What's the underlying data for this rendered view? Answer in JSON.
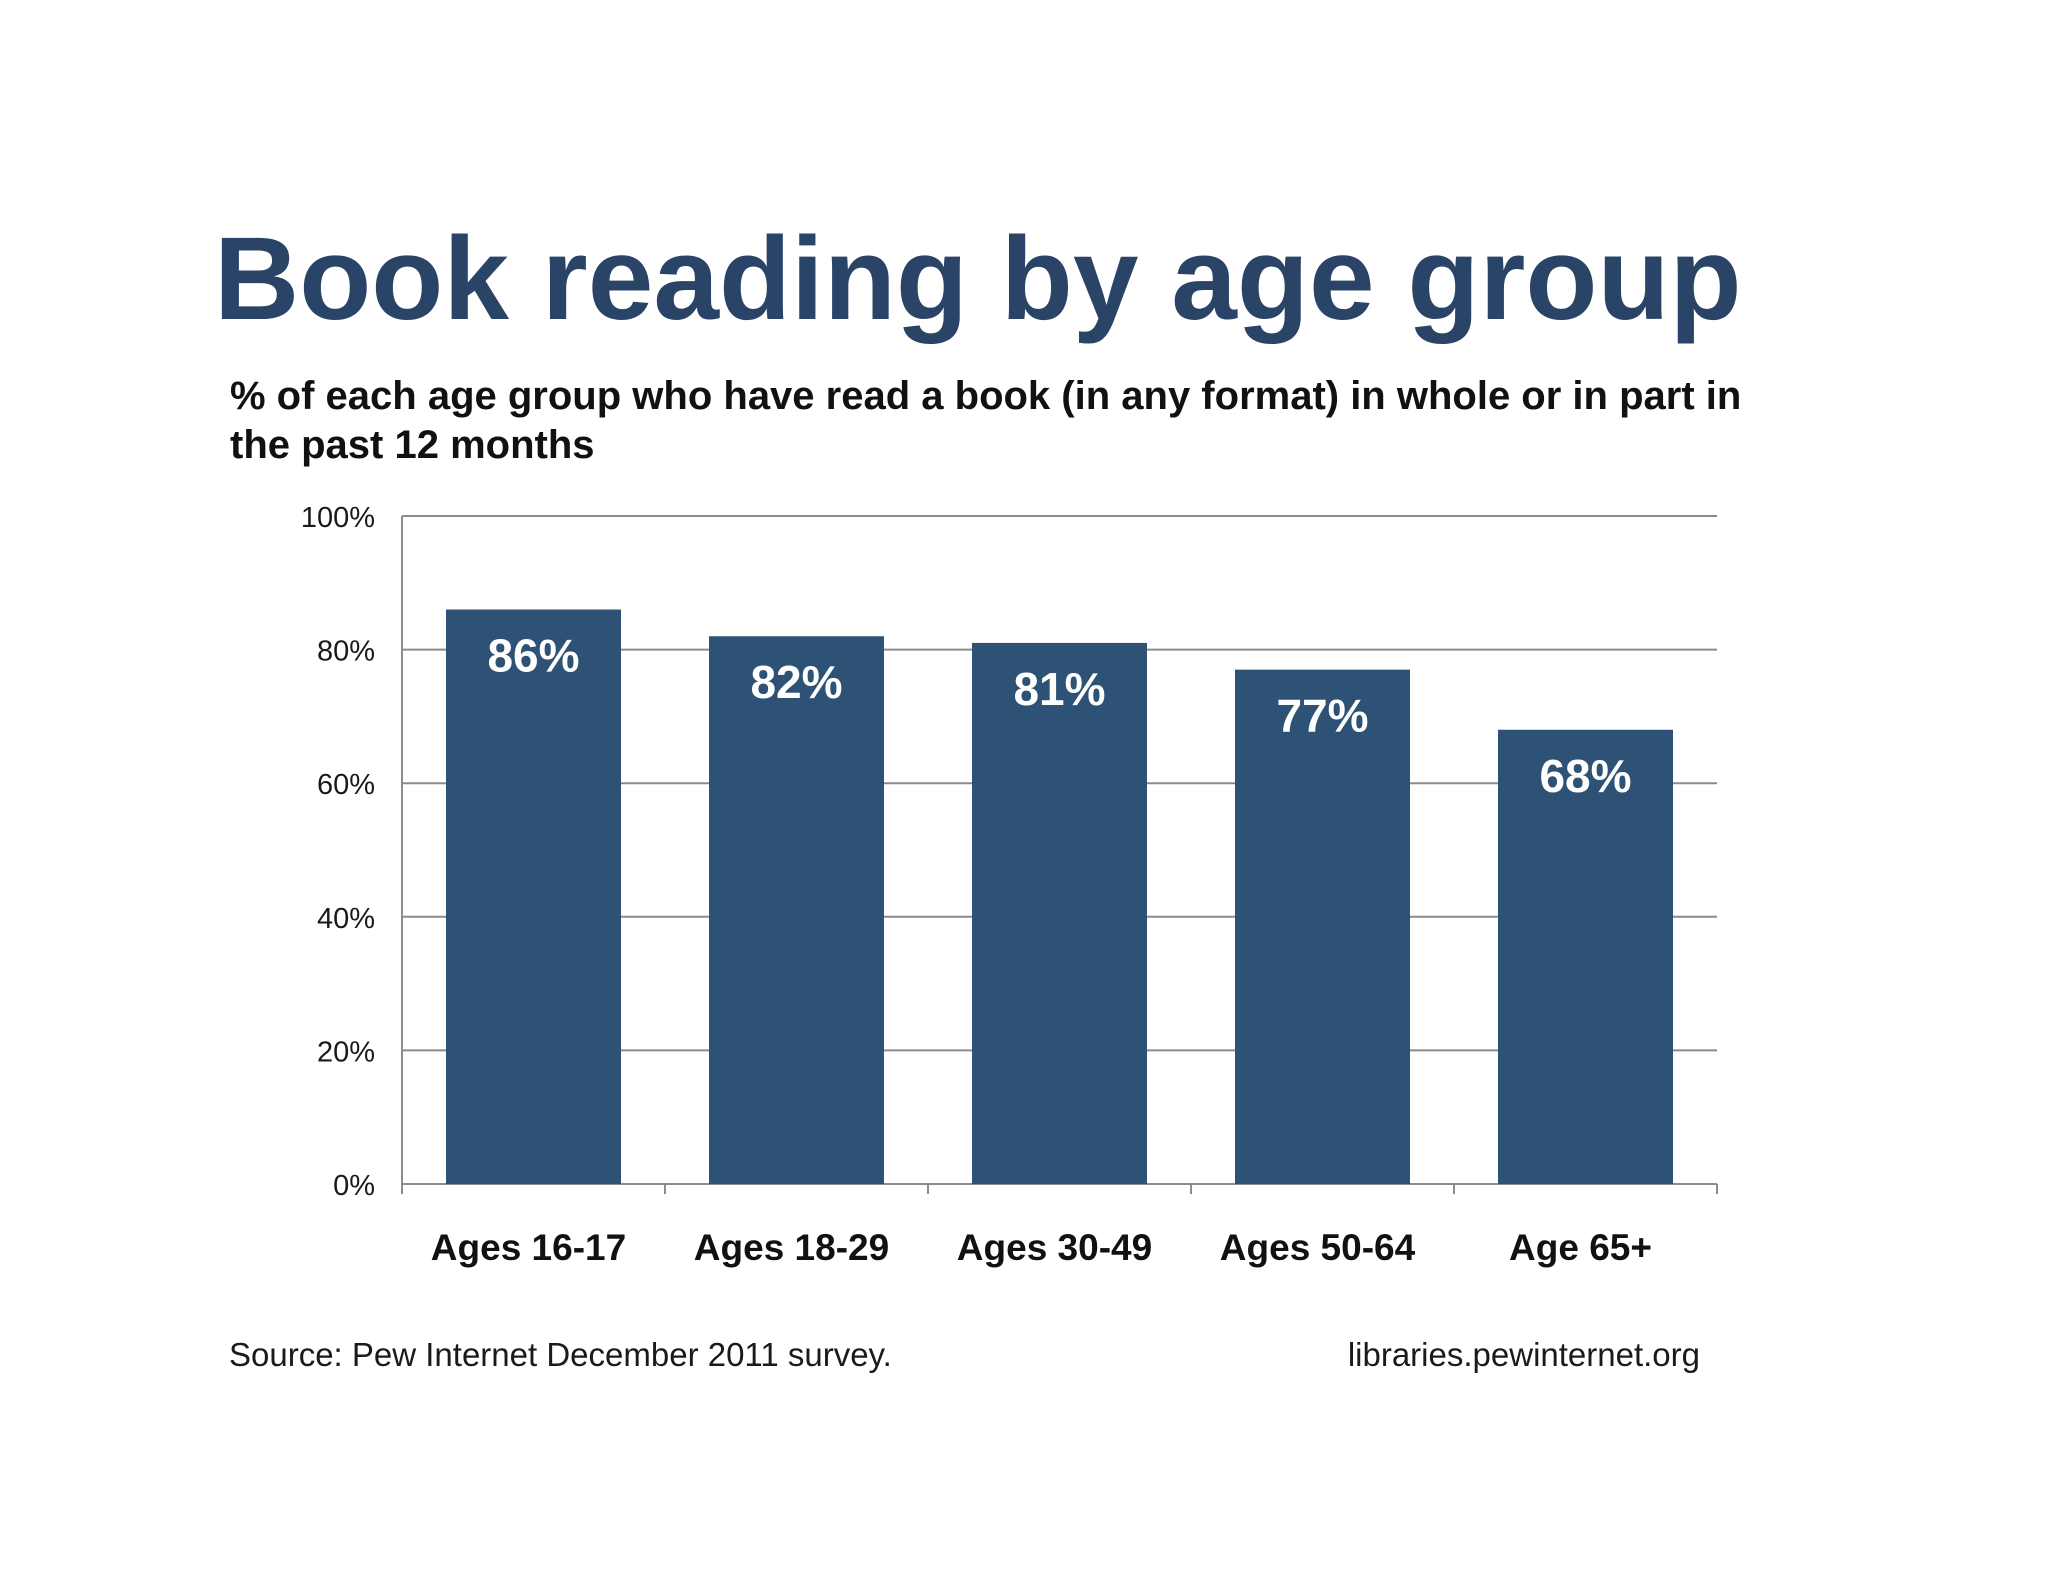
{
  "chart_data": {
    "type": "bar",
    "title": "Book reading by age group",
    "subtitle": "% of each age group who have read a book (in any format) in whole or in part in the past 12 months",
    "categories": [
      "Ages 16-17",
      "Ages 18-29",
      "Ages 30-49",
      "Ages 50-64",
      "Age 65+"
    ],
    "values": [
      86,
      82,
      81,
      77,
      68
    ],
    "data_labels": [
      "86%",
      "82%",
      "81%",
      "77%",
      "68%"
    ],
    "ylim": [
      0,
      100
    ],
    "yticks": [
      0,
      20,
      40,
      60,
      80,
      100
    ],
    "ytick_labels": [
      "0%",
      "20%",
      "40%",
      "60%",
      "80%",
      "100%"
    ],
    "xlabel": "",
    "ylabel": "",
    "grid": true,
    "legend": "none",
    "bar_color": "#2e5276",
    "label_color": "#ffffff"
  },
  "footer": {
    "source": "Source: Pew Internet December 2011 survey.",
    "url": "libraries.pewinternet.org"
  },
  "colors": {
    "title": "#2a4467",
    "bar": "#2e5276",
    "grid": "#8c8c8c",
    "text": "#111111"
  }
}
